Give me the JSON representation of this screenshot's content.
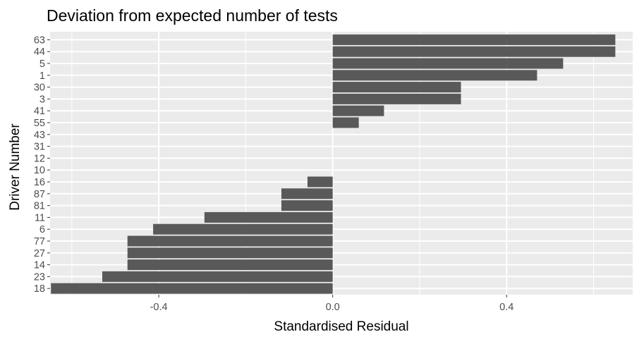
{
  "chart_data": {
    "type": "bar",
    "orientation": "horizontal",
    "title": "Deviation from expected number of tests",
    "xlabel": "Standardised Residual",
    "ylabel": "Driver Number",
    "xlim": [
      -0.65,
      0.69
    ],
    "x_ticks": [
      -0.4,
      0.0,
      0.4
    ],
    "x_tick_labels": [
      "-0.4",
      "0.0",
      "0.4"
    ],
    "grid": true,
    "categories": [
      "63",
      "44",
      "5",
      "1",
      "30",
      "3",
      "41",
      "55",
      "43",
      "31",
      "12",
      "10",
      "16",
      "87",
      "81",
      "11",
      "6",
      "77",
      "27",
      "14",
      "23",
      "18"
    ],
    "values": [
      0.65,
      0.65,
      0.53,
      0.47,
      0.295,
      0.295,
      0.118,
      0.06,
      0,
      0,
      0,
      0,
      -0.058,
      -0.118,
      -0.118,
      -0.295,
      -0.413,
      -0.472,
      -0.472,
      -0.472,
      -0.53,
      -0.648
    ],
    "colors": {
      "bar": "#595959",
      "panel_background": "#ebebeb",
      "grid": "#ffffff"
    }
  }
}
